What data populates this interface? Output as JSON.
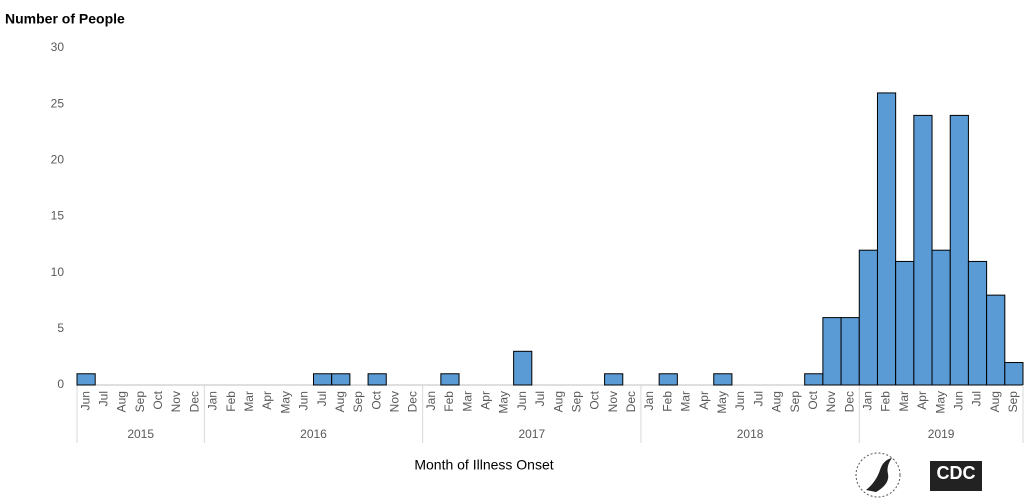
{
  "chart_data": {
    "type": "bar",
    "y_label": "Number of People",
    "x_label": "Month of Illness Onset",
    "color": "#5b9bd5",
    "ylim": [
      0,
      30
    ],
    "yticks": [
      0,
      5,
      10,
      15,
      20,
      25,
      30
    ],
    "grid": false,
    "groups": [
      {
        "name": "2015",
        "categories": [
          "Jun",
          "Jul",
          "Aug",
          "Sep",
          "Oct",
          "Nov",
          "Dec"
        ],
        "values": [
          1,
          0,
          0,
          0,
          0,
          0,
          0
        ]
      },
      {
        "name": "2016",
        "categories": [
          "Jan",
          "Feb",
          "Mar",
          "Apr",
          "May",
          "Jun",
          "Jul",
          "Aug",
          "Sep",
          "Oct",
          "Nov",
          "Dec"
        ],
        "values": [
          0,
          0,
          0,
          0,
          0,
          0,
          1,
          1,
          0,
          1,
          0,
          0
        ]
      },
      {
        "name": "2017",
        "categories": [
          "Jan",
          "Feb",
          "Mar",
          "Apr",
          "May",
          "Jun",
          "Jul",
          "Aug",
          "Sep",
          "Oct",
          "Nov",
          "Dec"
        ],
        "values": [
          0,
          1,
          0,
          0,
          0,
          3,
          0,
          0,
          0,
          0,
          1,
          0
        ]
      },
      {
        "name": "2018",
        "categories": [
          "Jan",
          "Feb",
          "Mar",
          "Apr",
          "May",
          "Jun",
          "Jul",
          "Aug",
          "Sep",
          "Oct",
          "Nov",
          "Dec"
        ],
        "values": [
          0,
          1,
          0,
          0,
          1,
          0,
          0,
          0,
          0,
          1,
          6,
          6
        ]
      },
      {
        "name": "2019",
        "categories": [
          "Jan",
          "Feb",
          "Mar",
          "Apr",
          "May",
          "Jun",
          "Jul",
          "Aug",
          "Sep"
        ],
        "values": [
          12,
          26,
          11,
          24,
          12,
          24,
          11,
          8,
          2
        ]
      }
    ]
  },
  "logo_text": "CDC"
}
